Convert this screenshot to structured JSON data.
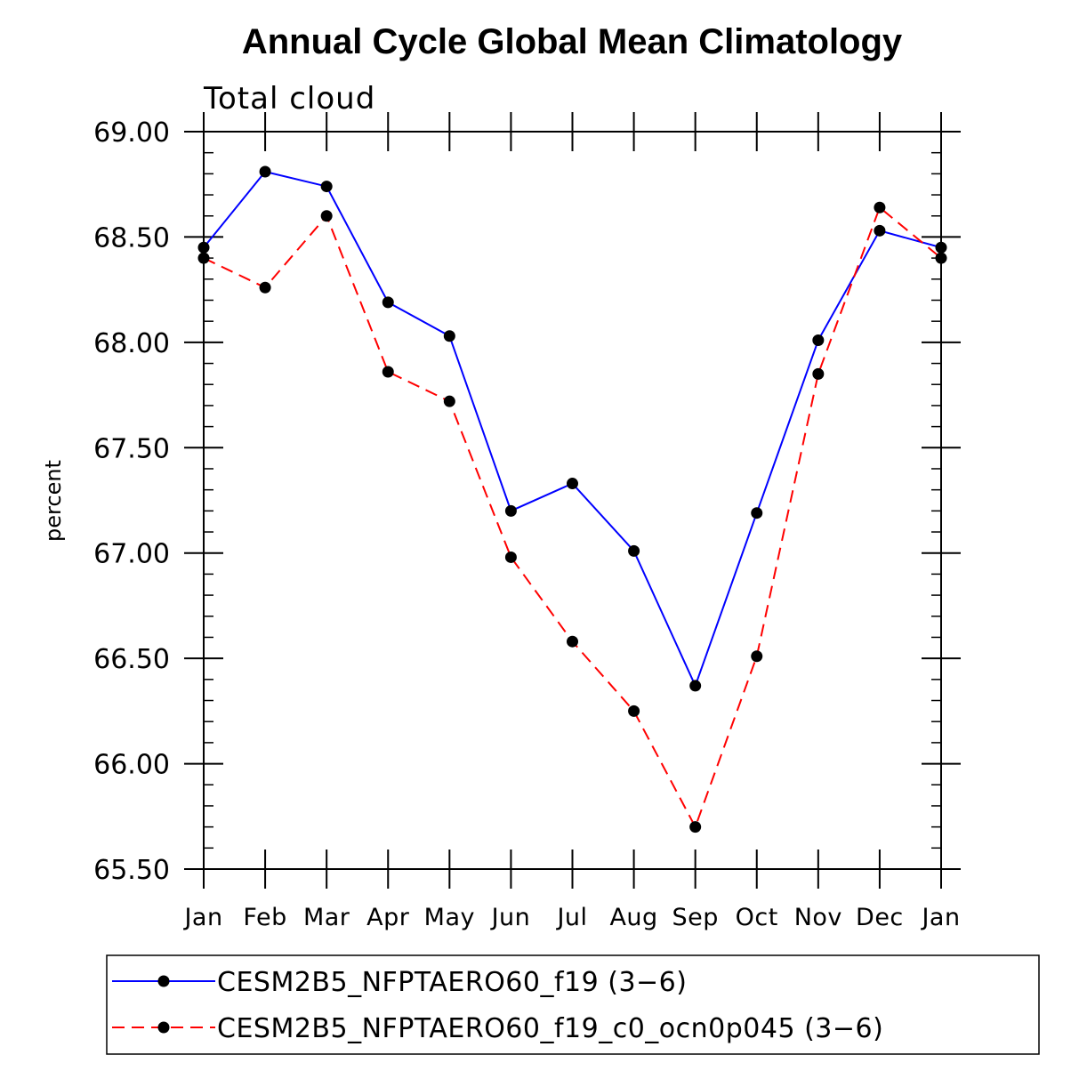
{
  "chart_data": {
    "type": "line",
    "title": "Annual Cycle Global Mean Climatology",
    "subtitle": "Total cloud",
    "xlabel": "",
    "ylabel": "percent",
    "categories": [
      "Jan",
      "Feb",
      "Mar",
      "Apr",
      "May",
      "Jun",
      "Jul",
      "Aug",
      "Sep",
      "Oct",
      "Nov",
      "Dec",
      "Jan"
    ],
    "ylim": [
      65.5,
      69.0
    ],
    "yticks": [
      "65.50",
      "66.00",
      "66.50",
      "67.00",
      "67.50",
      "68.00",
      "68.50",
      "69.00"
    ],
    "ytick_values": [
      65.5,
      66.0,
      66.5,
      67.0,
      67.5,
      68.0,
      68.5,
      69.0
    ],
    "grid": false,
    "legend_position": "bottom",
    "series": [
      {
        "name": "CESM2B5_NFPTAERO60_f19 (3-6)",
        "legend_label": "CESM2B5_NFPTAERO60_f19 (3−6)",
        "color": "#0000ff",
        "dash": "solid",
        "marker": "filled-circle",
        "values": [
          68.45,
          68.81,
          68.74,
          68.19,
          68.03,
          67.2,
          67.33,
          67.01,
          66.37,
          67.19,
          68.01,
          68.53,
          68.45
        ]
      },
      {
        "name": "CESM2B5_NFPTAERO60_f19_c0_ocn0p045 (3-6)",
        "legend_label": "CESM2B5_NFPTAERO60_f19_c0_ocn0p045 (3−6)",
        "color": "#ff0000",
        "dash": "dashed",
        "marker": "filled-circle",
        "values": [
          68.4,
          68.26,
          68.6,
          67.86,
          67.72,
          66.98,
          66.58,
          66.25,
          65.7,
          66.51,
          67.85,
          68.64,
          68.4
        ]
      }
    ]
  }
}
